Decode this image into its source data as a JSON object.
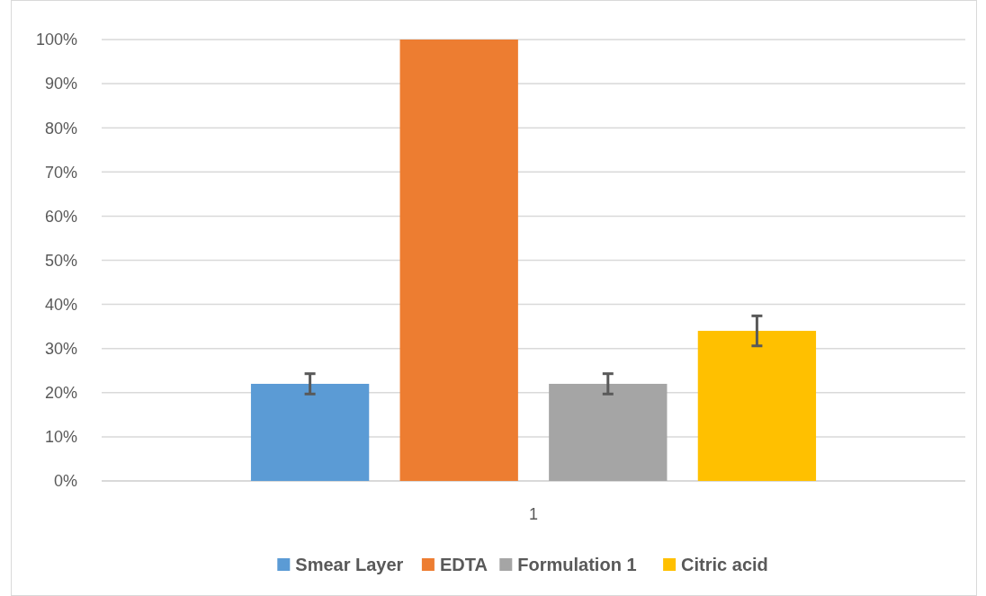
{
  "chart_data": {
    "type": "bar",
    "categories": [
      "1"
    ],
    "series": [
      {
        "name": "Smear Layer",
        "color": "#5b9bd5",
        "values": [
          22
        ],
        "errors": [
          2.3
        ]
      },
      {
        "name": "EDTA",
        "color": "#ed7d31",
        "values": [
          100
        ]
      },
      {
        "name": "Formulation 1",
        "color": "#a5a5a5",
        "values": [
          22
        ],
        "errors": [
          2.3
        ]
      },
      {
        "name": "Citric acid",
        "color": "#ffc000",
        "values": [
          34
        ],
        "errors": [
          3.4
        ]
      }
    ],
    "ylim": [
      0,
      100
    ],
    "yticks": [
      {
        "value": 0,
        "label": "0%"
      },
      {
        "value": 10,
        "label": "10%"
      },
      {
        "value": 20,
        "label": "20%"
      },
      {
        "value": 30,
        "label": "30%"
      },
      {
        "value": 40,
        "label": "40%"
      },
      {
        "value": 50,
        "label": "50%"
      },
      {
        "value": 60,
        "label": "60%"
      },
      {
        "value": 70,
        "label": "70%"
      },
      {
        "value": 80,
        "label": "80%"
      },
      {
        "value": 90,
        "label": "90%"
      },
      {
        "value": 100,
        "label": "100%"
      }
    ],
    "grid": "y",
    "legend": "bottom"
  }
}
